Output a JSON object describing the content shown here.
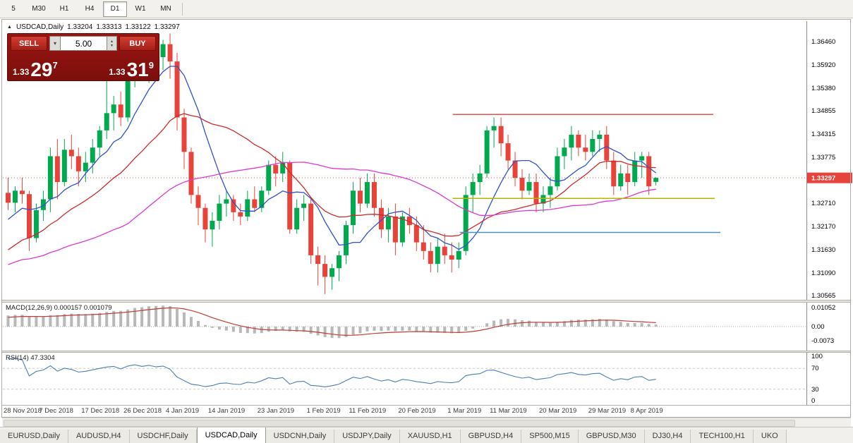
{
  "toolbar": {
    "timeframes": [
      "5",
      "M30",
      "H1",
      "H4",
      "D1",
      "W1",
      "MN"
    ],
    "active": "D1"
  },
  "chart_header": {
    "symbol_label": "USDCAD,Daily",
    "open": "1.33204",
    "high": "1.33313",
    "low": "1.33122",
    "close": "1.33297"
  },
  "trade_panel": {
    "sell_label": "SELL",
    "buy_label": "BUY",
    "volume": "5.00",
    "sell_price_small": "1.33",
    "sell_price_big": "29",
    "sell_price_sup": "7",
    "buy_price_small": "1.33",
    "buy_price_big": "31",
    "buy_price_sup": "9"
  },
  "price_scale": {
    "labels": [
      "1.36460",
      "1.35920",
      "1.35380",
      "1.34855",
      "1.34315",
      "1.33775",
      "1.33235",
      "1.32710",
      "1.32170",
      "1.31630",
      "1.31090",
      "1.30565"
    ],
    "current_price": "1.33297"
  },
  "macd_panel": {
    "label": "MACD(12,26,9) 0.000157 0.001079",
    "scale": [
      "0.01052",
      "0.00",
      "-0.0073"
    ]
  },
  "rsi_panel": {
    "label": "RSI(14) 47.3304",
    "scale": [
      "100",
      "70",
      "30",
      "0"
    ]
  },
  "tabs": {
    "items": [
      "EURUSD,Daily",
      "AUDUSD,H4",
      "USDCHF,Daily",
      "USDCAD,Daily",
      "USDCNH,Daily",
      "USDJPY,Daily",
      "XAUUSD,H1",
      "GBPUSD,H4",
      "SP500,M15",
      "GBPUSD,M30",
      "DJ30,H4",
      "TECH100,H1",
      "UKO"
    ],
    "active": "USDCAD,Daily"
  },
  "colors": {
    "candle_up": "#00a84e",
    "candle_down": "#e8433b",
    "ma_fast": "#2d52cc",
    "ma_mid": "#cc2a2a",
    "ma_slow": "#dd39cc",
    "bid_line": "#e8433b",
    "badge_bg": "#e8433b",
    "badge_text": "#ffffff",
    "macd_bar": "#b8b8b8",
    "macd_signal": "#c23a3a",
    "rsi_line": "#4a7fb5",
    "axis_line": "#8f8c86"
  },
  "chart_data": {
    "type": "candlestick",
    "symbol": "USDCAD",
    "timeframe": "Daily",
    "title": "USDCAD,Daily 1.33204 1.33313 1.33122 1.33297",
    "price_range": [
      1.3046,
      1.3688
    ],
    "dates": [
      "2018.11.28",
      "2018.11.29",
      "2018.11.30",
      "2018.12.03",
      "2018.12.04",
      "2018.12.05",
      "2018.12.06",
      "2018.12.07",
      "2018.12.10",
      "2018.12.11",
      "2018.12.12",
      "2018.12.13",
      "2018.12.14",
      "2018.12.17",
      "2018.12.18",
      "2018.12.19",
      "2018.12.20",
      "2018.12.21",
      "2018.12.24",
      "2018.12.26",
      "2018.12.27",
      "2018.12.28",
      "2018.12.31",
      "2019.01.02",
      "2019.01.03",
      "2019.01.04",
      "2019.01.07",
      "2019.01.08",
      "2019.01.09",
      "2019.01.10",
      "2019.01.11",
      "2019.01.14",
      "2019.01.15",
      "2019.01.16",
      "2019.01.17",
      "2019.01.18",
      "2019.01.21",
      "2019.01.22",
      "2019.01.23",
      "2019.01.24",
      "2019.01.25",
      "2019.01.28",
      "2019.01.29",
      "2019.01.30",
      "2019.01.31",
      "2019.02.01",
      "2019.02.04",
      "2019.02.05",
      "2019.02.06",
      "2019.02.07",
      "2019.02.08",
      "2019.02.11",
      "2019.02.12",
      "2019.02.13",
      "2019.02.14",
      "2019.02.15",
      "2019.02.18",
      "2019.02.19",
      "2019.02.20",
      "2019.02.21",
      "2019.02.22",
      "2019.02.25",
      "2019.02.26",
      "2019.02.27",
      "2019.02.28",
      "2019.03.01",
      "2019.03.04",
      "2019.03.05",
      "2019.03.06",
      "2019.03.07",
      "2019.03.08",
      "2019.03.11",
      "2019.03.12",
      "2019.03.13",
      "2019.03.14",
      "2019.03.15",
      "2019.03.18",
      "2019.03.19",
      "2019.03.20",
      "2019.03.21",
      "2019.03.22",
      "2019.03.25",
      "2019.03.26",
      "2019.03.27",
      "2019.03.28",
      "2019.03.29",
      "2019.04.01",
      "2019.04.02",
      "2019.04.03",
      "2019.04.04",
      "2019.04.05",
      "2019.04.08",
      "2019.04.09"
    ],
    "ohlc": [
      [
        1.3295,
        1.333,
        1.3255,
        1.3272
      ],
      [
        1.3272,
        1.331,
        1.325,
        1.33
      ],
      [
        1.33,
        1.333,
        1.327,
        1.3292
      ],
      [
        1.3292,
        1.33,
        1.316,
        1.319
      ],
      [
        1.319,
        1.327,
        1.318,
        1.3255
      ],
      [
        1.3255,
        1.33,
        1.323,
        1.328
      ],
      [
        1.328,
        1.34,
        1.325,
        1.338
      ],
      [
        1.338,
        1.342,
        1.328,
        1.332
      ],
      [
        1.332,
        1.342,
        1.331,
        1.3395
      ],
      [
        1.3395,
        1.343,
        1.335,
        1.338
      ],
      [
        1.338,
        1.34,
        1.331,
        1.3345
      ],
      [
        1.3345,
        1.339,
        1.332,
        1.3365
      ],
      [
        1.3365,
        1.342,
        1.334,
        1.34
      ],
      [
        1.34,
        1.345,
        1.338,
        1.344
      ],
      [
        1.344,
        1.356,
        1.342,
        1.348
      ],
      [
        1.348,
        1.352,
        1.344,
        1.35
      ],
      [
        1.35,
        1.353,
        1.345,
        1.347
      ],
      [
        1.347,
        1.357,
        1.346,
        1.356
      ],
      [
        1.356,
        1.363,
        1.354,
        1.361
      ],
      [
        1.361,
        1.365,
        1.356,
        1.359
      ],
      [
        1.359,
        1.364,
        1.355,
        1.363
      ],
      [
        1.363,
        1.366,
        1.359,
        1.361
      ],
      [
        1.361,
        1.365,
        1.358,
        1.364
      ],
      [
        1.364,
        1.3665,
        1.356,
        1.36
      ],
      [
        1.36,
        1.362,
        1.344,
        1.347
      ],
      [
        1.347,
        1.349,
        1.335,
        1.339
      ],
      [
        1.339,
        1.34,
        1.327,
        1.329
      ],
      [
        1.329,
        1.331,
        1.322,
        1.326
      ],
      [
        1.326,
        1.327,
        1.318,
        1.321
      ],
      [
        1.321,
        1.325,
        1.317,
        1.323
      ],
      [
        1.323,
        1.329,
        1.321,
        1.327
      ],
      [
        1.327,
        1.33,
        1.324,
        1.328
      ],
      [
        1.328,
        1.329,
        1.323,
        1.325
      ],
      [
        1.325,
        1.327,
        1.322,
        1.324
      ],
      [
        1.324,
        1.33,
        1.323,
        1.328
      ],
      [
        1.328,
        1.331,
        1.325,
        1.326
      ],
      [
        1.326,
        1.331,
        1.325,
        1.33
      ],
      [
        1.33,
        1.337,
        1.329,
        1.336
      ],
      [
        1.336,
        1.338,
        1.331,
        1.334
      ],
      [
        1.334,
        1.339,
        1.332,
        1.3365
      ],
      [
        1.3365,
        1.337,
        1.32,
        1.321
      ],
      [
        1.321,
        1.328,
        1.32,
        1.326
      ],
      [
        1.326,
        1.329,
        1.323,
        1.327
      ],
      [
        1.327,
        1.328,
        1.313,
        1.315
      ],
      [
        1.315,
        1.317,
        1.308,
        1.313
      ],
      [
        1.313,
        1.315,
        1.306,
        1.31
      ],
      [
        1.31,
        1.313,
        1.307,
        1.312
      ],
      [
        1.312,
        1.316,
        1.309,
        1.315
      ],
      [
        1.315,
        1.323,
        1.313,
        1.322
      ],
      [
        1.322,
        1.332,
        1.32,
        1.33
      ],
      [
        1.33,
        1.333,
        1.325,
        1.327
      ],
      [
        1.327,
        1.334,
        1.326,
        1.332
      ],
      [
        1.332,
        1.334,
        1.324,
        1.326
      ],
      [
        1.326,
        1.328,
        1.319,
        1.321
      ],
      [
        1.321,
        1.326,
        1.318,
        1.324
      ],
      [
        1.324,
        1.327,
        1.315,
        1.318
      ],
      [
        1.318,
        1.325,
        1.317,
        1.324
      ],
      [
        1.324,
        1.326,
        1.32,
        1.322
      ],
      [
        1.322,
        1.324,
        1.316,
        1.318
      ],
      [
        1.318,
        1.322,
        1.314,
        1.316
      ],
      [
        1.316,
        1.318,
        1.311,
        1.313
      ],
      [
        1.313,
        1.319,
        1.311,
        1.317
      ],
      [
        1.317,
        1.32,
        1.313,
        1.315
      ],
      [
        1.315,
        1.318,
        1.311,
        1.314
      ],
      [
        1.314,
        1.318,
        1.312,
        1.316
      ],
      [
        1.316,
        1.331,
        1.315,
        1.329
      ],
      [
        1.329,
        1.334,
        1.325,
        1.332
      ],
      [
        1.332,
        1.336,
        1.329,
        1.334
      ],
      [
        1.334,
        1.345,
        1.333,
        1.344
      ],
      [
        1.344,
        1.347,
        1.34,
        1.345
      ],
      [
        1.345,
        1.347,
        1.338,
        1.341
      ],
      [
        1.341,
        1.343,
        1.335,
        1.337
      ],
      [
        1.337,
        1.339,
        1.331,
        1.333
      ],
      [
        1.333,
        1.335,
        1.328,
        1.33
      ],
      [
        1.33,
        1.334,
        1.329,
        1.332
      ],
      [
        1.332,
        1.334,
        1.325,
        1.327
      ],
      [
        1.327,
        1.331,
        1.325,
        1.329
      ],
      [
        1.329,
        1.333,
        1.326,
        1.331
      ],
      [
        1.331,
        1.34,
        1.33,
        1.338
      ],
      [
        1.338,
        1.342,
        1.335,
        1.34
      ],
      [
        1.34,
        1.345,
        1.337,
        1.343
      ],
      [
        1.343,
        1.344,
        1.338,
        1.34
      ],
      [
        1.34,
        1.343,
        1.337,
        1.339
      ],
      [
        1.339,
        1.344,
        1.338,
        1.342
      ],
      [
        1.342,
        1.344,
        1.339,
        1.343
      ],
      [
        1.343,
        1.345,
        1.335,
        1.337
      ],
      [
        1.337,
        1.339,
        1.329,
        1.331
      ],
      [
        1.331,
        1.336,
        1.33,
        1.334
      ],
      [
        1.334,
        1.336,
        1.329,
        1.332
      ],
      [
        1.332,
        1.339,
        1.331,
        1.337
      ],
      [
        1.337,
        1.339,
        1.333,
        1.338
      ],
      [
        1.338,
        1.339,
        1.329,
        1.331
      ],
      [
        1.33204,
        1.33313,
        1.33122,
        1.33297
      ]
    ],
    "pre_history_closes": [
      1.301,
      1.302,
      1.3015,
      1.303,
      1.3045,
      1.304,
      1.3055,
      1.307,
      1.3065,
      1.308,
      1.3095,
      1.309,
      1.311,
      1.3125,
      1.312,
      1.314,
      1.316,
      1.3155,
      1.3175,
      1.3195,
      1.319,
      1.3215,
      1.3235,
      1.323,
      1.3255,
      1.3275
    ],
    "moving_averages": [
      {
        "name": "ma-fast",
        "period": 8,
        "color": "#2d52cc"
      },
      {
        "name": "ma-mid",
        "period": 20,
        "color": "#cc2a2a"
      },
      {
        "name": "ma-slow",
        "period": 44,
        "color": "#dd39cc"
      }
    ],
    "hlines": [
      {
        "name": "resistance-line",
        "price": 1.3477,
        "from_index": 63.5,
        "to_index": 100.5,
        "color": "#e0564d"
      },
      {
        "name": "support-line",
        "price": 1.3282,
        "from_index": 63.5,
        "to_index": 100.7,
        "color": "#b8b400"
      },
      {
        "name": "lower-line",
        "price": 1.3203,
        "from_index": 64.5,
        "to_index": 101.5,
        "color": "#4a90c8"
      }
    ],
    "date_ticks": [
      {
        "i": 0,
        "label": "28 Nov 2018"
      },
      {
        "i": 7,
        "label": "7 Dec 2018"
      },
      {
        "i": 13,
        "label": "17 Dec 2018"
      },
      {
        "i": 19,
        "label": "26 Dec 2018"
      },
      {
        "i": 25,
        "label": "4 Jan 2019"
      },
      {
        "i": 31,
        "label": "14 Jan 2019"
      },
      {
        "i": 38,
        "label": "23 Jan 2019"
      },
      {
        "i": 45,
        "label": "1 Feb 2019"
      },
      {
        "i": 51,
        "label": "11 Feb 2019"
      },
      {
        "i": 58,
        "label": "20 Feb 2019"
      },
      {
        "i": 65,
        "label": "1 Mar 2019"
      },
      {
        "i": 71,
        "label": "11 Mar 2019"
      },
      {
        "i": 78,
        "label": "20 Mar 2019"
      },
      {
        "i": 85,
        "label": "29 Mar 2019"
      },
      {
        "i": 91,
        "label": "8 Apr 2019"
      }
    ],
    "indicators": {
      "macd": {
        "fast": 12,
        "slow": 26,
        "signal": 9,
        "values_label": [
          0.000157,
          0.001079
        ],
        "axis_range": [
          -0.0073,
          0.01052
        ]
      },
      "rsi": {
        "period": 14,
        "value": 47.3304,
        "levels": [
          70,
          30
        ],
        "axis_range": [
          0,
          100
        ]
      }
    }
  }
}
